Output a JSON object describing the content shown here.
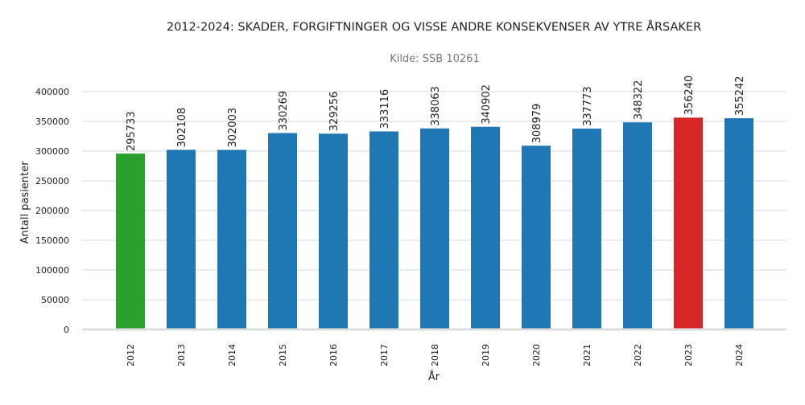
{
  "chart_data": {
    "type": "bar",
    "title": "2012-2024: SKADER, FORGIFTNINGER OG VISSE ANDRE KONSEKVENSER AV YTRE ÅRSAKER",
    "subtitle": "Kilde: SSB 10261",
    "xlabel": "År",
    "ylabel": "Antall pasienter",
    "ylim": [
      0,
      400000
    ],
    "yticks": [
      0,
      50000,
      100000,
      150000,
      200000,
      250000,
      300000,
      350000,
      400000
    ],
    "grid": true,
    "categories": [
      "2012",
      "2013",
      "2014",
      "2015",
      "2016",
      "2017",
      "2018",
      "2019",
      "2020",
      "2021",
      "2022",
      "2023",
      "2024"
    ],
    "values": [
      295733,
      302108,
      302003,
      330269,
      329256,
      333116,
      338063,
      340902,
      308979,
      337773,
      348322,
      356240,
      355242
    ],
    "colors": {
      "default": "#1f77b4",
      "min": "#2ca02c",
      "max": "#d62728"
    },
    "highlight": {
      "2012": "min",
      "2023": "max"
    }
  }
}
